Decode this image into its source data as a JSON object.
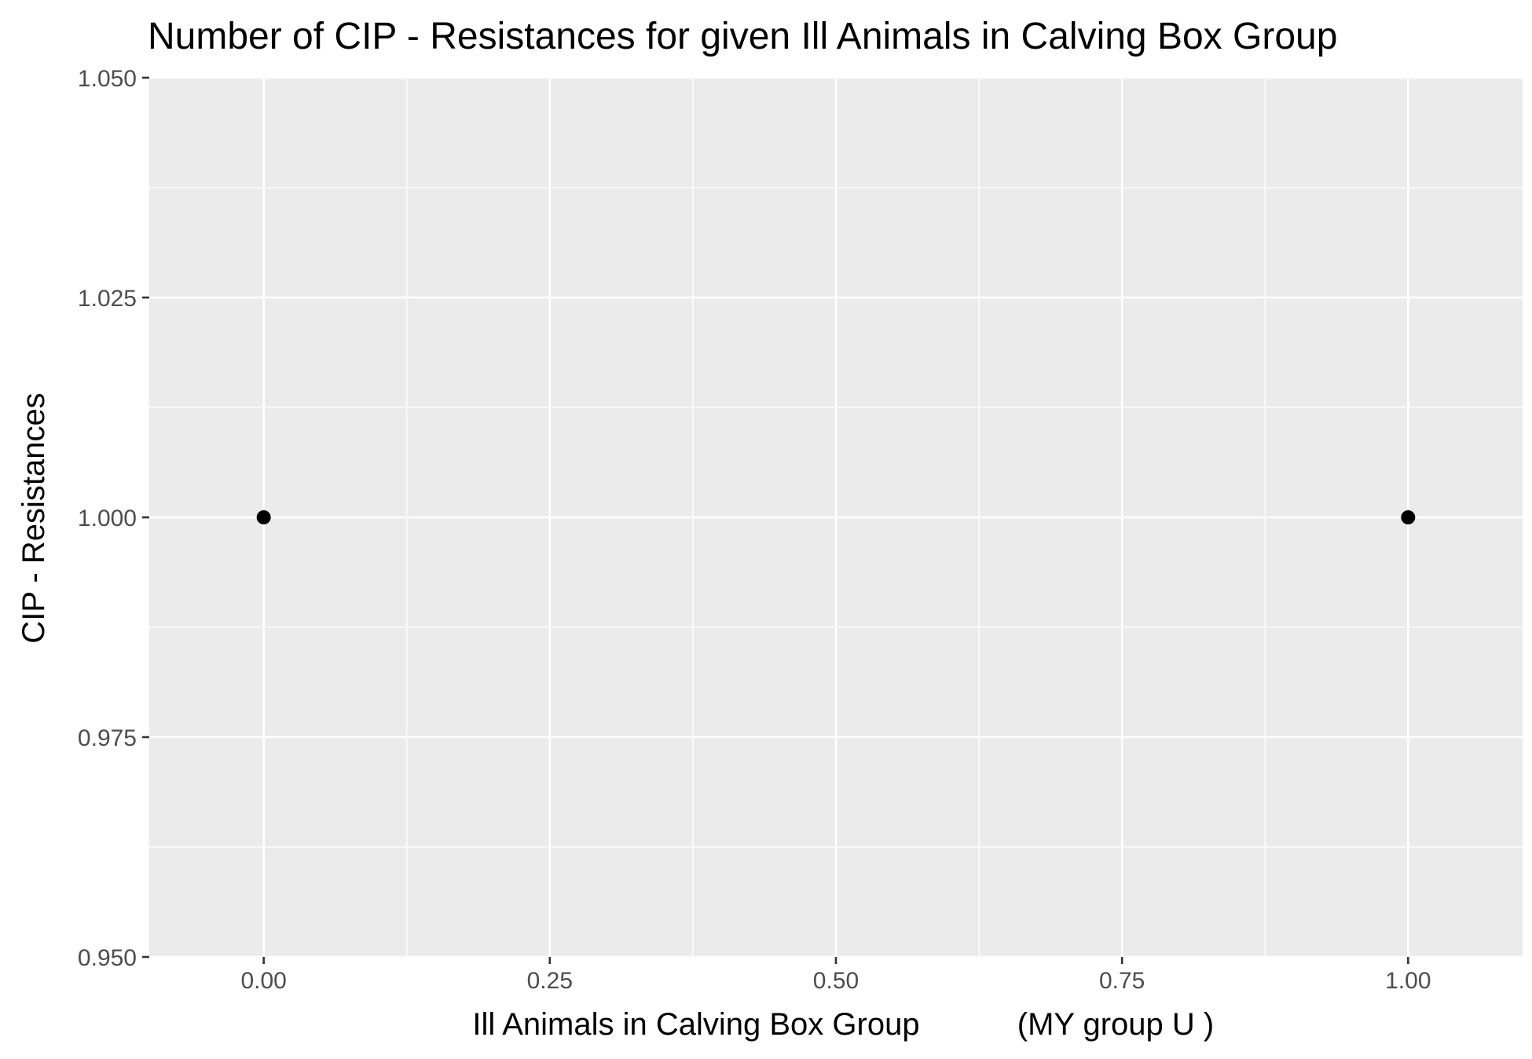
{
  "chart_data": {
    "type": "scatter",
    "title": "Number of CIP - Resistances for given Ill Animals in Calving Box Group",
    "xlabel_main": "Ill Animals in Calving Box Group",
    "xlabel_group": "(MY group U )",
    "ylabel": "CIP - Resistances",
    "xlim": [
      -0.1,
      1.1
    ],
    "ylim": [
      0.95,
      1.05
    ],
    "x_ticks": [
      0.0,
      0.25,
      0.5,
      0.75,
      1.0
    ],
    "x_tick_labels": [
      "0.00",
      "0.25",
      "0.50",
      "0.75",
      "1.00"
    ],
    "y_ticks": [
      0.95,
      0.975,
      1.0,
      1.025,
      1.05
    ],
    "y_tick_labels": [
      "0.950",
      "0.975",
      "1.000",
      "1.025",
      "1.050"
    ],
    "grid": true,
    "legend": "none",
    "points": [
      {
        "x": 0.0,
        "y": 1.0
      },
      {
        "x": 1.0,
        "y": 1.0
      }
    ],
    "colors": {
      "panel_background": "#ebebeb",
      "grid_major": "#ffffff",
      "grid_minor": "#ffffff",
      "point": "#000000",
      "tick": "#333333"
    }
  }
}
